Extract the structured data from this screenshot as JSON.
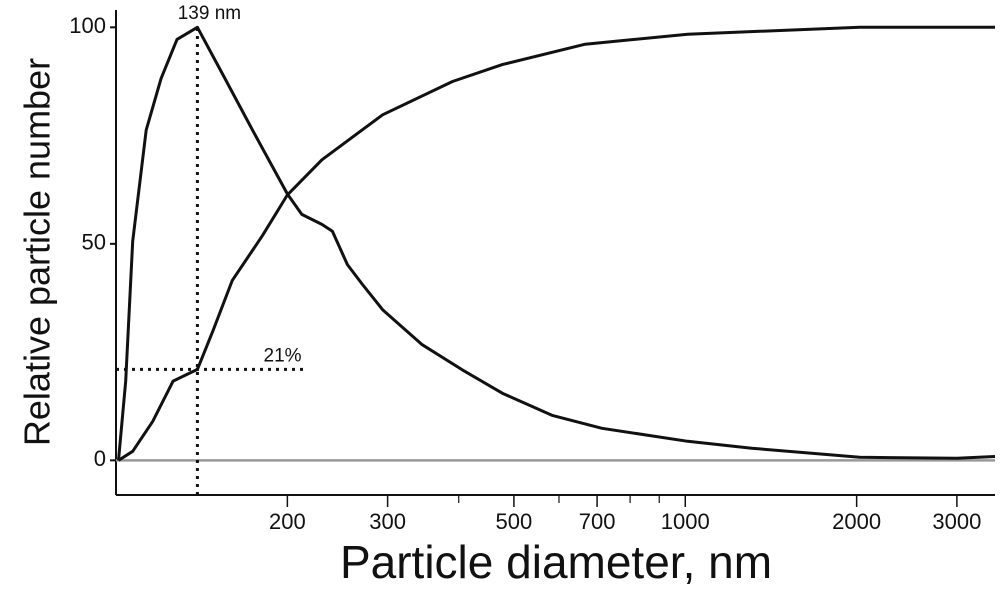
{
  "chart_data": {
    "type": "line",
    "xlabel": "Particle diameter,  nm",
    "ylabel": "Relative particle number",
    "xscale": "log",
    "xlim": [
      100,
      3500
    ],
    "ylim": [
      -8,
      104
    ],
    "xticks": [
      200,
      300,
      500,
      700,
      1000,
      2000,
      3000
    ],
    "xminorticks": [
      400,
      600,
      800,
      900
    ],
    "yticks": [
      0,
      50,
      100
    ],
    "zero_line": true,
    "series": [
      {
        "color": "#111111",
        "x": [
          101,
          104,
          107,
          113,
          120,
          128,
          139,
          154,
          174,
          200,
          212,
          230,
          240,
          255,
          271,
          294,
          345,
          406,
          477,
          583,
          714,
          1010,
          1308,
          2025,
          3000,
          3500
        ],
        "values": [
          0,
          18.3,
          50.6,
          76.3,
          88.2,
          97.2,
          100,
          89.1,
          76.1,
          61.5,
          56.8,
          54.5,
          52.9,
          45.2,
          40.6,
          34.8,
          26.7,
          20.9,
          15.5,
          10.4,
          7.4,
          4.4,
          2.8,
          0.7,
          0.5,
          0.9
        ]
      },
      {
        "color": "#111111",
        "x": [
          101,
          107,
          116,
          126,
          139,
          148,
          160,
          181,
          200,
          230,
          294,
          390,
          477,
          667,
          1010,
          2025,
          3500
        ],
        "values": [
          0,
          2.1,
          9.0,
          18.3,
          21,
          29.9,
          41.5,
          52.0,
          61.3,
          69.4,
          79.8,
          87.5,
          91.4,
          96.1,
          98.4,
          100,
          100
        ]
      }
    ],
    "reference_lines": [
      {
        "axis": "x",
        "value": 139,
        "label": "139 nm"
      },
      {
        "axis": "y",
        "value": 21,
        "to_x": 217,
        "label": "21%"
      }
    ]
  }
}
